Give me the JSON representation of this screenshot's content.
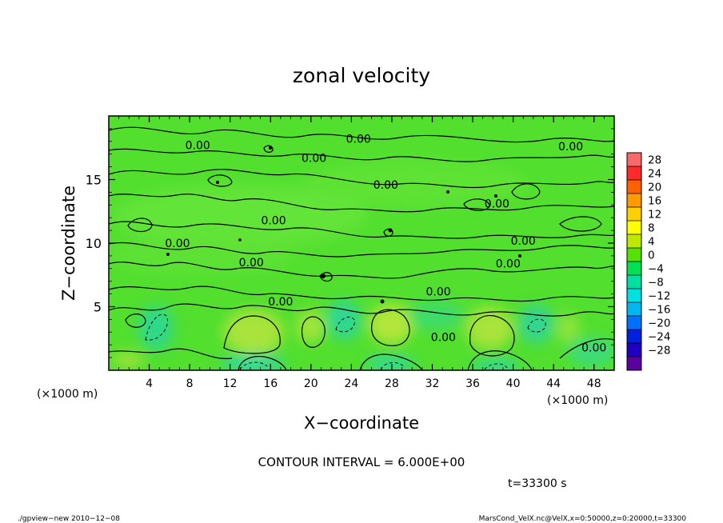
{
  "chart_data": {
    "type": "heatmap",
    "title": "zonal velocity",
    "xlabel": "X−coordinate",
    "ylabel": "Z−coordinate",
    "x_unit": "(×1000 m)",
    "x_unit_right": "(×1000 m)",
    "xlim": [
      0,
      50
    ],
    "ylim": [
      0,
      20
    ],
    "x_ticks": [
      4,
      8,
      12,
      16,
      20,
      24,
      28,
      32,
      36,
      40,
      44,
      48
    ],
    "x_tick_labels": [
      "4",
      "8",
      "12",
      "16",
      "20",
      "24",
      "28",
      "32",
      "36",
      "40",
      "44",
      "48"
    ],
    "y_ticks": [
      5,
      10,
      15
    ],
    "y_tick_labels": [
      "5",
      "10",
      "15"
    ],
    "contour_interval_text": "CONTOUR INTERVAL = 6.000E+00",
    "time_label": "t=33300 s",
    "contour_labels": [
      {
        "text": "0.00",
        "x": 8.8,
        "z": 17.7
      },
      {
        "text": "0.00",
        "x": 24.7,
        "z": 18.2
      },
      {
        "text": "0.00",
        "x": 45.7,
        "z": 17.6
      },
      {
        "text": "0.00",
        "x": 20.3,
        "z": 16.7
      },
      {
        "text": "0.00",
        "x": 27.4,
        "z": 14.6
      },
      {
        "text": "0.00",
        "x": 38.4,
        "z": 13.1
      },
      {
        "text": "0.00",
        "x": 16.3,
        "z": 11.8
      },
      {
        "text": "0.00",
        "x": 6.8,
        "z": 10.0
      },
      {
        "text": "0.00",
        "x": 41.0,
        "z": 10.2
      },
      {
        "text": "0.00",
        "x": 14.1,
        "z": 8.5
      },
      {
        "text": "0.00",
        "x": 39.5,
        "z": 8.4
      },
      {
        "text": "0.00",
        "x": 17.0,
        "z": 5.4
      },
      {
        "text": "0.00",
        "x": 32.6,
        "z": 6.2
      },
      {
        "text": "0.00",
        "x": 33.1,
        "z": 2.6
      },
      {
        "text": "0.00",
        "x": 48.0,
        "z": 1.8
      }
    ],
    "colorbar": {
      "labels": [
        "28",
        "24",
        "20",
        "16",
        "12",
        "8",
        "4",
        "0",
        "−4",
        "−8",
        "−12",
        "−16",
        "−20",
        "−24",
        "−28"
      ],
      "colors": [
        "#f56a6a",
        "#ff2a2a",
        "#ff6000",
        "#ff9a00",
        "#ffd000",
        "#ffff00",
        "#bfe800",
        "#55e200",
        "#00e050",
        "#00e0a0",
        "#00e0e0",
        "#00b8f0",
        "#0070ff",
        "#0020e0",
        "#2000c0",
        "#5a00a0"
      ]
    }
  },
  "footer": {
    "left": "./gpview−new   2010−12−08",
    "right": "MarsCond_VelX.nc@VelX,x=0:50000,z=0:20000,t=33300"
  }
}
